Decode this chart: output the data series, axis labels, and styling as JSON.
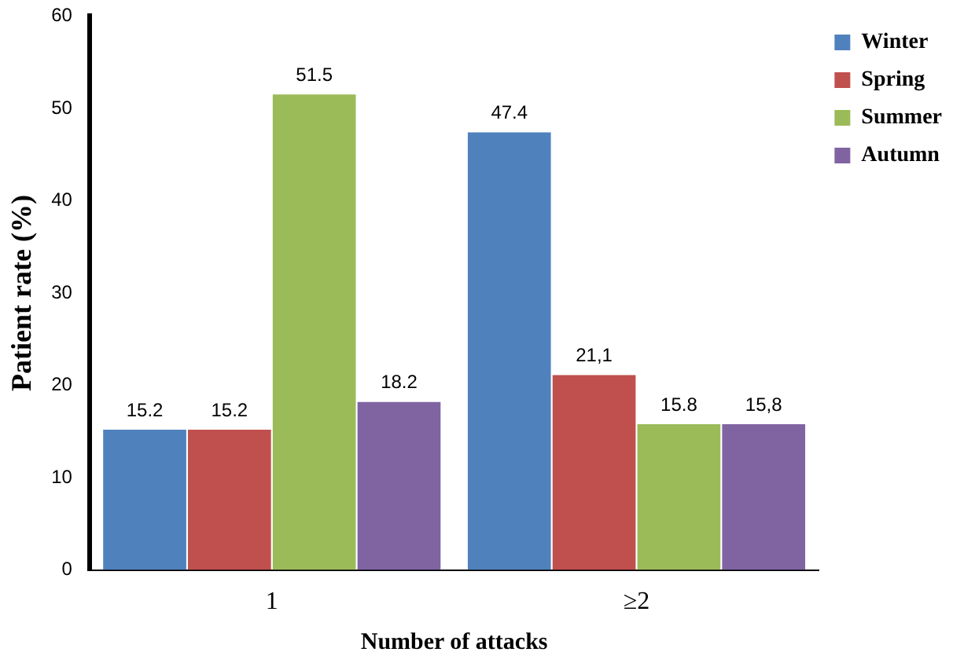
{
  "chart_data": {
    "type": "bar",
    "xlabel": "Number of attacks",
    "ylabel": "Patient rate (%)",
    "categories": [
      "1",
      "≥2"
    ],
    "series": [
      {
        "name": "Winter",
        "color": "#4f81bd",
        "values": [
          15.2,
          47.4
        ],
        "value_labels": [
          "15.2",
          "47.4"
        ]
      },
      {
        "name": "Spring",
        "color": "#c0504d",
        "values": [
          15.2,
          21.1
        ],
        "value_labels": [
          "15.2",
          "21,1"
        ]
      },
      {
        "name": "Summer",
        "color": "#9bbb59",
        "values": [
          51.5,
          15.8
        ],
        "value_labels": [
          "51.5",
          "15.8"
        ]
      },
      {
        "name": "Autumn",
        "color": "#8064a2",
        "values": [
          18.2,
          15.8
        ],
        "value_labels": [
          "18.2",
          "15,8"
        ]
      }
    ],
    "ylim": [
      0,
      60
    ],
    "yticks": [
      0,
      10,
      20,
      30,
      40,
      50,
      60
    ],
    "grid": false,
    "legend": "top right"
  }
}
